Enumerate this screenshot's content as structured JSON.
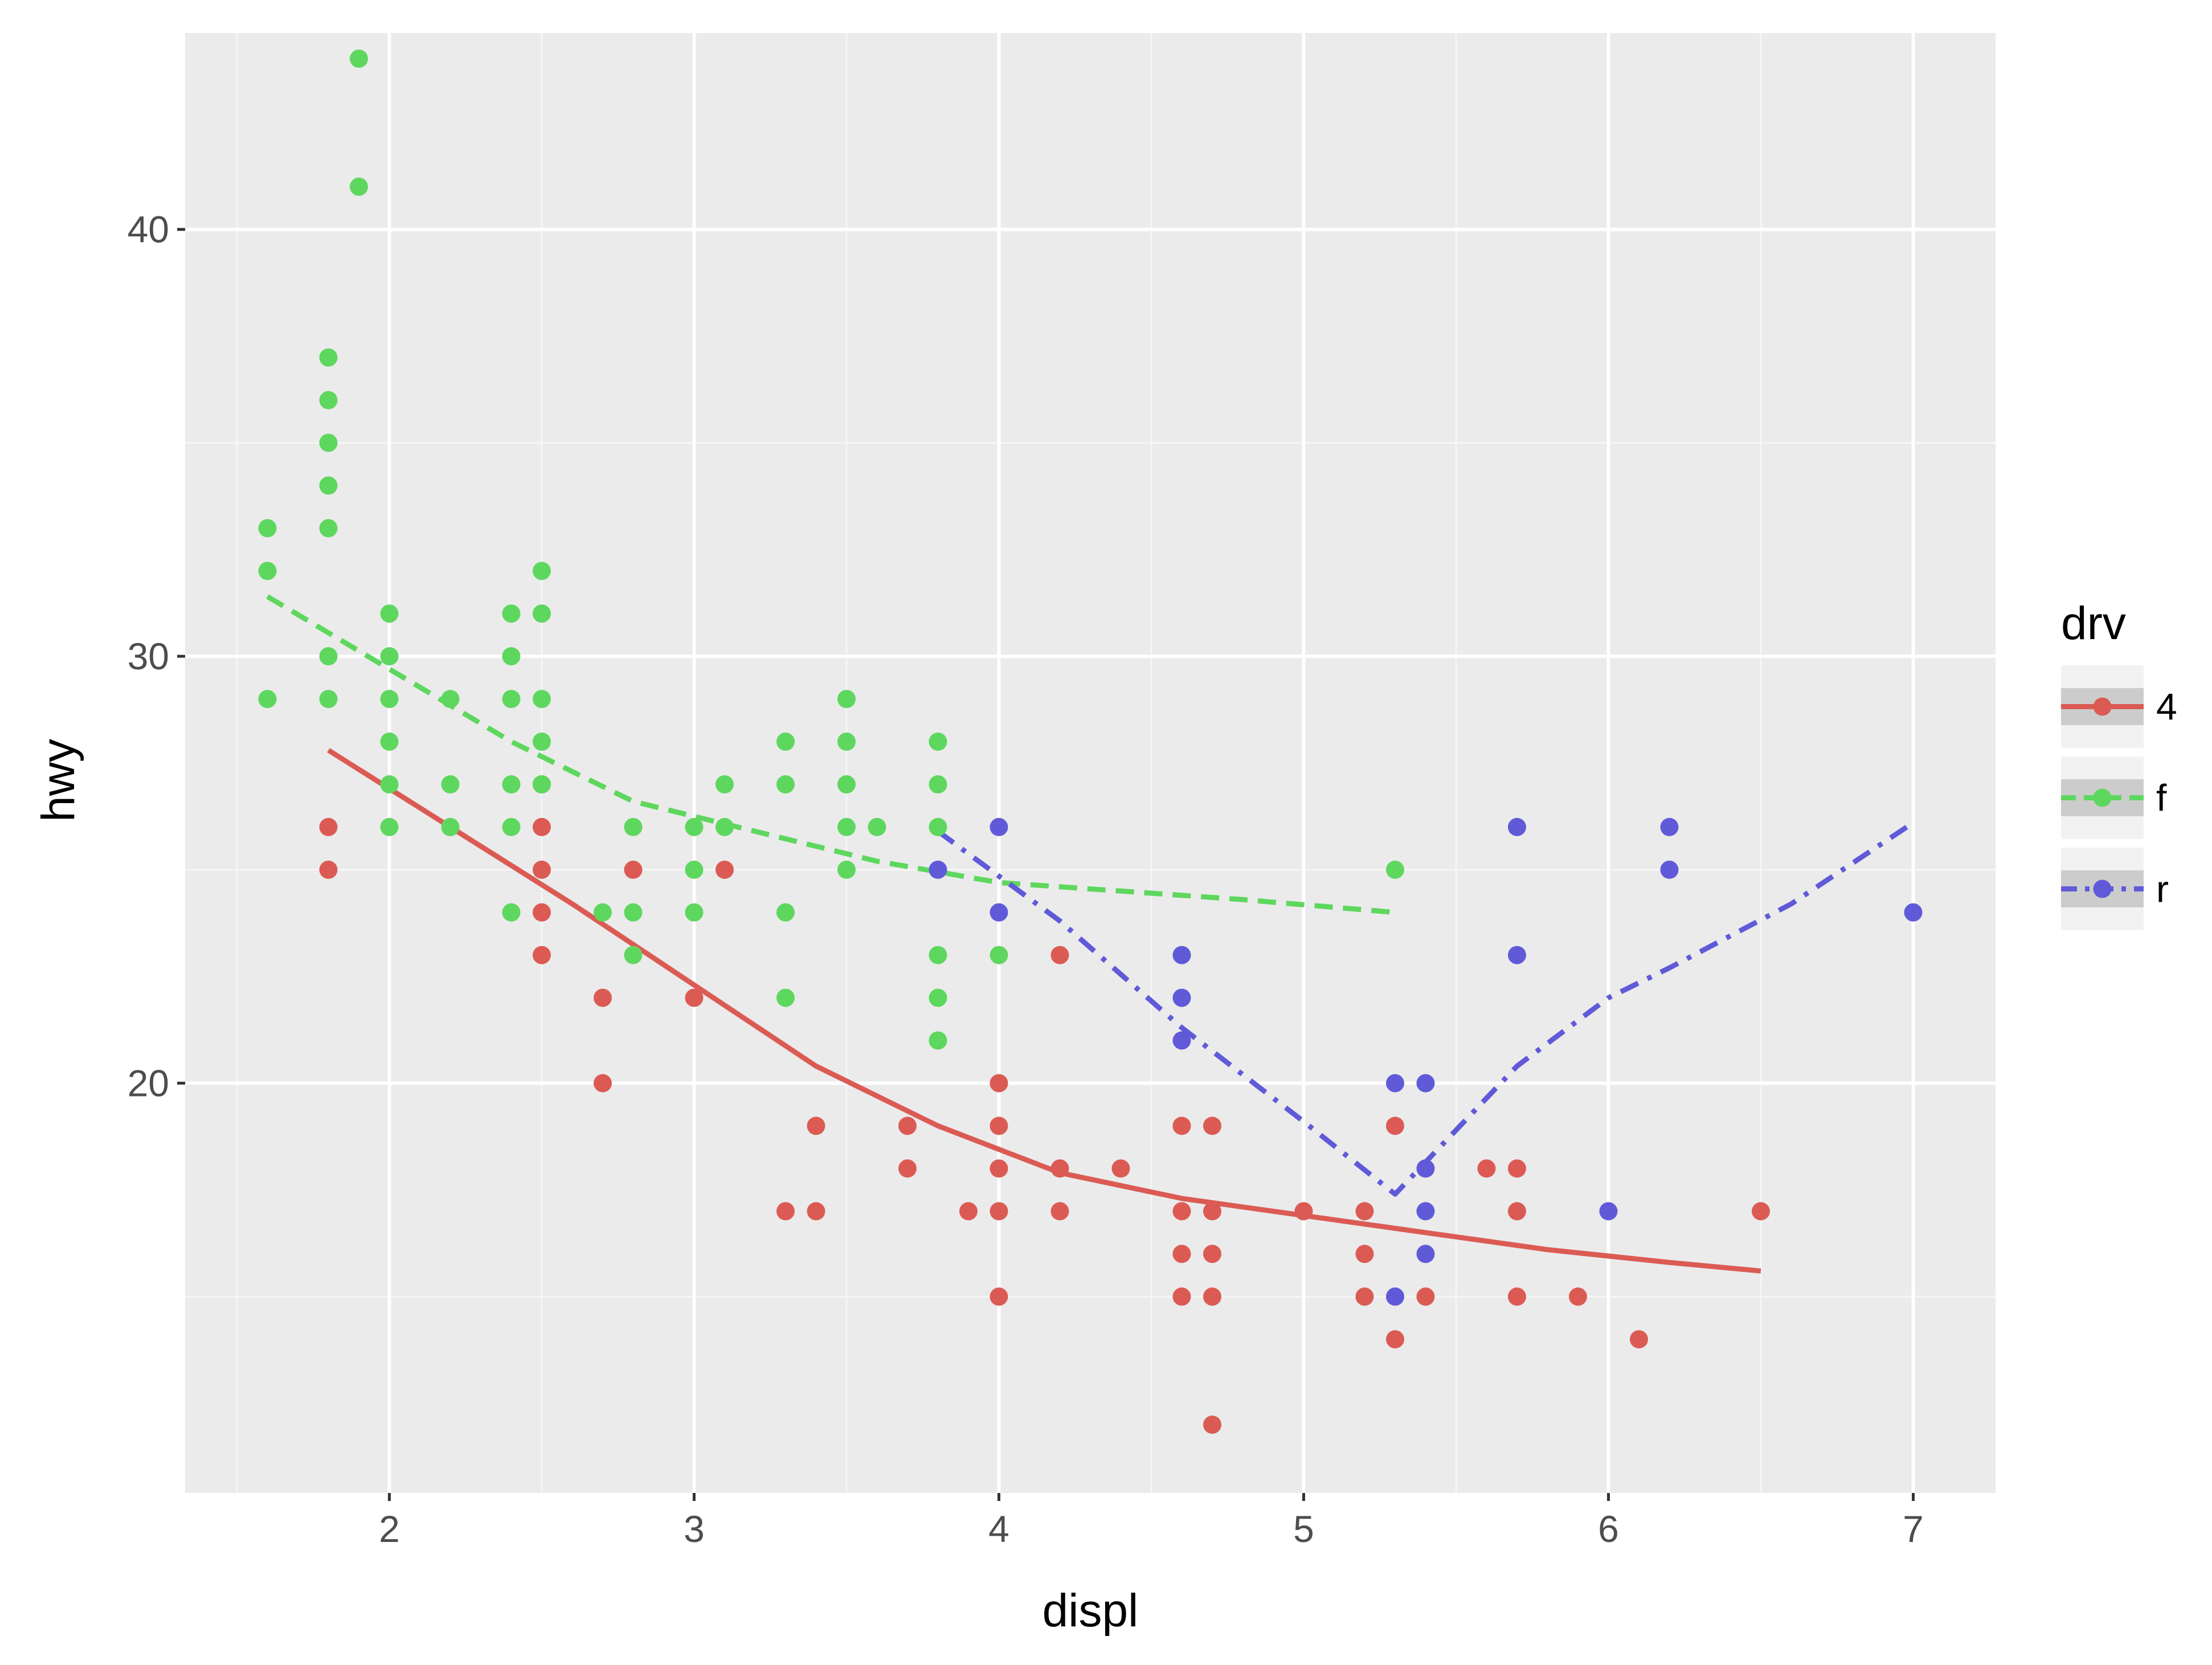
{
  "chart_data": {
    "type": "scatter",
    "xlabel": "displ",
    "ylabel": "hwy",
    "xlim": [
      1.33,
      7.27
    ],
    "ylim": [
      10.4,
      44.6
    ],
    "x_ticks": [
      "2",
      "3",
      "4",
      "5",
      "6",
      "7"
    ],
    "y_ticks": [
      "20",
      "30",
      "40"
    ],
    "grid": true,
    "legend": {
      "title": "drv",
      "position": "right"
    },
    "series": [
      {
        "name": "4",
        "color": "#db5b54",
        "line_style": "solid",
        "points": [
          [
            1.8,
            26
          ],
          [
            1.8,
            25
          ],
          [
            2.2,
            26
          ],
          [
            2.5,
            27
          ],
          [
            2.5,
            26
          ],
          [
            2.5,
            25
          ],
          [
            2.5,
            24
          ],
          [
            2.5,
            23
          ],
          [
            2.7,
            22
          ],
          [
            2.7,
            20
          ],
          [
            2.8,
            25
          ],
          [
            3.0,
            22
          ],
          [
            3.1,
            25
          ],
          [
            3.3,
            17
          ],
          [
            3.4,
            19
          ],
          [
            3.4,
            17
          ],
          [
            3.7,
            19
          ],
          [
            3.7,
            18
          ],
          [
            3.9,
            17
          ],
          [
            4.0,
            20
          ],
          [
            4.0,
            19
          ],
          [
            4.0,
            18
          ],
          [
            4.0,
            17
          ],
          [
            4.0,
            15
          ],
          [
            4.2,
            23
          ],
          [
            4.2,
            18
          ],
          [
            4.2,
            17
          ],
          [
            4.4,
            18
          ],
          [
            4.6,
            19
          ],
          [
            4.6,
            17
          ],
          [
            4.6,
            16
          ],
          [
            4.6,
            15
          ],
          [
            4.7,
            19
          ],
          [
            4.7,
            17
          ],
          [
            4.7,
            16
          ],
          [
            4.7,
            15
          ],
          [
            4.7,
            12
          ],
          [
            5.0,
            17
          ],
          [
            5.2,
            17
          ],
          [
            5.2,
            16
          ],
          [
            5.2,
            15
          ],
          [
            5.3,
            19
          ],
          [
            5.3,
            14
          ],
          [
            5.4,
            15
          ],
          [
            5.6,
            18
          ],
          [
            5.7,
            18
          ],
          [
            5.7,
            17
          ],
          [
            5.7,
            15
          ],
          [
            5.9,
            15
          ],
          [
            6.1,
            14
          ],
          [
            6.5,
            17
          ]
        ],
        "smooth": [
          [
            1.8,
            27.8
          ],
          [
            2.2,
            26.0
          ],
          [
            2.6,
            24.2
          ],
          [
            3.0,
            22.3
          ],
          [
            3.4,
            20.4
          ],
          [
            3.8,
            19.0
          ],
          [
            4.2,
            17.9
          ],
          [
            4.6,
            17.3
          ],
          [
            5.0,
            16.9
          ],
          [
            5.4,
            16.5
          ],
          [
            5.8,
            16.1
          ],
          [
            6.2,
            15.8
          ],
          [
            6.5,
            15.6
          ]
        ]
      },
      {
        "name": "f",
        "color": "#5ed75e",
        "line_style": "dashed",
        "points": [
          [
            1.6,
            33
          ],
          [
            1.6,
            32
          ],
          [
            1.6,
            29
          ],
          [
            1.8,
            37
          ],
          [
            1.8,
            36
          ],
          [
            1.8,
            35
          ],
          [
            1.8,
            34
          ],
          [
            1.8,
            33
          ],
          [
            1.8,
            30
          ],
          [
            1.8,
            29
          ],
          [
            1.9,
            44
          ],
          [
            1.9,
            41
          ],
          [
            2.0,
            31
          ],
          [
            2.0,
            30
          ],
          [
            2.0,
            29
          ],
          [
            2.0,
            28
          ],
          [
            2.0,
            27
          ],
          [
            2.0,
            26
          ],
          [
            2.2,
            29
          ],
          [
            2.2,
            27
          ],
          [
            2.2,
            26
          ],
          [
            2.4,
            31
          ],
          [
            2.4,
            30
          ],
          [
            2.4,
            29
          ],
          [
            2.4,
            27
          ],
          [
            2.4,
            26
          ],
          [
            2.4,
            24
          ],
          [
            2.5,
            32
          ],
          [
            2.5,
            31
          ],
          [
            2.5,
            29
          ],
          [
            2.5,
            28
          ],
          [
            2.5,
            27
          ],
          [
            2.7,
            24
          ],
          [
            2.8,
            26
          ],
          [
            2.8,
            24
          ],
          [
            2.8,
            23
          ],
          [
            3.0,
            26
          ],
          [
            3.0,
            25
          ],
          [
            3.0,
            24
          ],
          [
            3.1,
            27
          ],
          [
            3.1,
            26
          ],
          [
            3.3,
            28
          ],
          [
            3.3,
            27
          ],
          [
            3.3,
            24
          ],
          [
            3.3,
            22
          ],
          [
            3.5,
            29
          ],
          [
            3.5,
            28
          ],
          [
            3.5,
            27
          ],
          [
            3.5,
            26
          ],
          [
            3.5,
            25
          ],
          [
            3.6,
            26
          ],
          [
            3.8,
            28
          ],
          [
            3.8,
            27
          ],
          [
            3.8,
            26
          ],
          [
            3.8,
            23
          ],
          [
            3.8,
            22
          ],
          [
            3.8,
            21
          ],
          [
            4.0,
            23
          ],
          [
            5.3,
            25
          ]
        ],
        "smooth": [
          [
            1.6,
            31.4
          ],
          [
            2.0,
            29.7
          ],
          [
            2.4,
            28.0
          ],
          [
            2.8,
            26.6
          ],
          [
            3.2,
            25.9
          ],
          [
            3.6,
            25.2
          ],
          [
            4.0,
            24.7
          ],
          [
            4.4,
            24.5
          ],
          [
            4.8,
            24.3
          ],
          [
            5.3,
            24.0
          ]
        ]
      },
      {
        "name": "r",
        "color": "#605ad9",
        "line_style": "dashdot",
        "points": [
          [
            3.8,
            25
          ],
          [
            4.0,
            26
          ],
          [
            4.0,
            24
          ],
          [
            4.6,
            23
          ],
          [
            4.6,
            22
          ],
          [
            4.6,
            21
          ],
          [
            5.3,
            20
          ],
          [
            5.3,
            15
          ],
          [
            5.4,
            20
          ],
          [
            5.4,
            18
          ],
          [
            5.4,
            17
          ],
          [
            5.4,
            16
          ],
          [
            5.7,
            26
          ],
          [
            5.7,
            23
          ],
          [
            6.0,
            17
          ],
          [
            6.2,
            26
          ],
          [
            6.2,
            25
          ],
          [
            7.0,
            24
          ]
        ],
        "smooth": [
          [
            3.8,
            25.9
          ],
          [
            4.2,
            23.8
          ],
          [
            4.6,
            21.3
          ],
          [
            5.0,
            19.1
          ],
          [
            5.3,
            17.4
          ],
          [
            5.5,
            18.9
          ],
          [
            5.7,
            20.4
          ],
          [
            6.0,
            22.0
          ],
          [
            6.2,
            22.7
          ],
          [
            6.6,
            24.2
          ],
          [
            7.0,
            26.1
          ]
        ]
      }
    ]
  }
}
